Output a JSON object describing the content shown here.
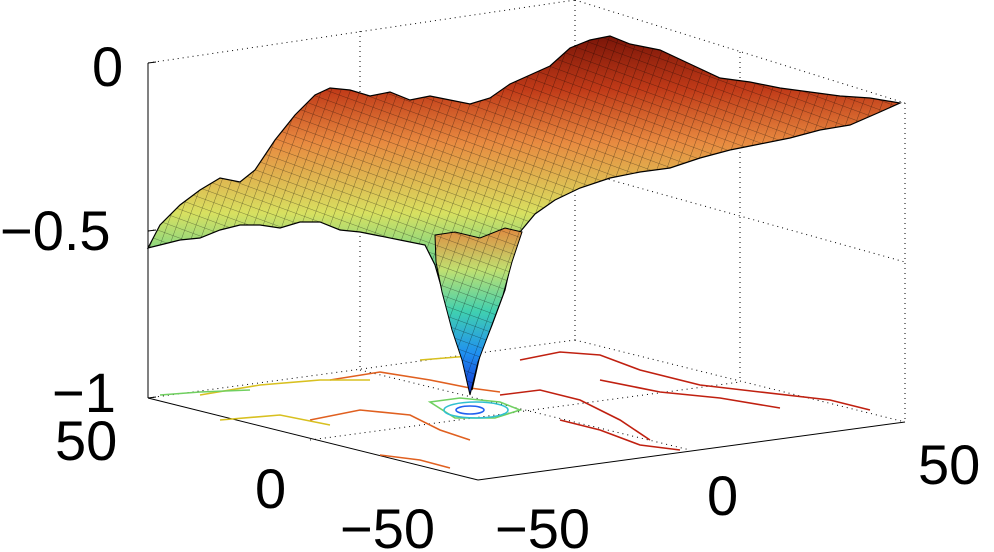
{
  "chart_data": {
    "type": "surface",
    "title": "",
    "xlabel": "",
    "ylabel": "",
    "zlabel": "",
    "x_range": [
      -50,
      50
    ],
    "y_range": [
      -50,
      50
    ],
    "z_range": [
      -1,
      0
    ],
    "x_ticks": [
      "−50",
      "0",
      "50"
    ],
    "y_ticks": [
      "−50",
      "0",
      "50"
    ],
    "z_ticks": [
      "−1",
      "−0.5",
      "0"
    ],
    "grid": true,
    "colormap": "jet",
    "contour_projection_on_floor": true,
    "minimum": {
      "x": -5,
      "y": 0,
      "z": -1
    },
    "surface_profile_y0": [
      {
        "x": -50,
        "z": -0.5
      },
      {
        "x": -35,
        "z": -0.35
      },
      {
        "x": -20,
        "z": -0.3
      },
      {
        "x": -10,
        "z": -0.45
      },
      {
        "x": -5,
        "z": -1
      },
      {
        "x": 0,
        "z": -0.45
      },
      {
        "x": 10,
        "z": -0.2
      },
      {
        "x": 25,
        "z": -0.1
      },
      {
        "x": 50,
        "z": -0.15
      }
    ],
    "colors": {
      "low": "#1030d0",
      "mid": "#40d0a0",
      "high": "#7a1508",
      "edge": "#000000"
    }
  }
}
